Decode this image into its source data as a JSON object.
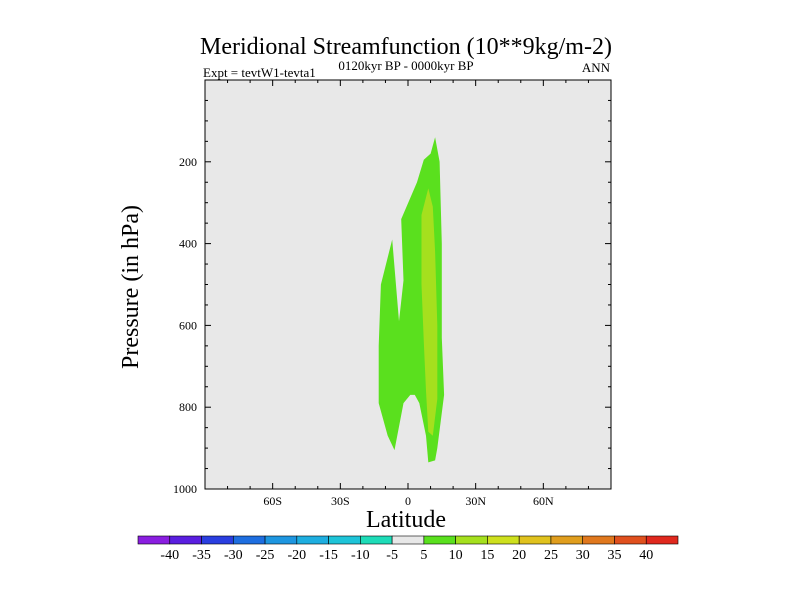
{
  "chart_data": {
    "type": "contour",
    "title": "Meridional Streamfunction (10**9kg/m-2)",
    "subtitle_left": "Expt = tevtW1-tevta1",
    "subtitle_center": "0120kyr BP - 0000kyr BP",
    "subtitle_right": "ANN",
    "xlabel": "Latitude",
    "ylabel": "Pressure (in hPa)",
    "xlim": [
      -90,
      90
    ],
    "ylim": [
      1000,
      0
    ],
    "x_ticks": [
      {
        "value": -60,
        "label": "60S"
      },
      {
        "value": -30,
        "label": "30S"
      },
      {
        "value": 0,
        "label": "0"
      },
      {
        "value": 30,
        "label": "30N"
      },
      {
        "value": 60,
        "label": "60N"
      }
    ],
    "y_ticks": [
      {
        "value": 200,
        "label": "200"
      },
      {
        "value": 400,
        "label": "400"
      },
      {
        "value": 600,
        "label": "600"
      },
      {
        "value": 800,
        "label": "800"
      },
      {
        "value": 1000,
        "label": "1000"
      }
    ],
    "background_color": "#e8e8e8",
    "regions": [
      {
        "name": "contour-5-to-10",
        "color": "#5ae01e",
        "points": [
          [
            -13,
            790
          ],
          [
            -13,
            650
          ],
          [
            -12,
            500
          ],
          [
            -7,
            390
          ],
          [
            -4,
            590
          ],
          [
            -2,
            490
          ],
          [
            -3,
            340
          ],
          [
            4,
            250
          ],
          [
            7,
            195
          ],
          [
            10,
            180
          ],
          [
            12,
            140
          ],
          [
            14,
            200
          ],
          [
            15,
            400
          ],
          [
            15,
            630
          ],
          [
            16,
            770
          ],
          [
            13,
            900
          ],
          [
            12,
            930
          ],
          [
            9,
            935
          ],
          [
            8,
            870
          ],
          [
            5,
            790
          ],
          [
            3,
            770
          ],
          [
            1,
            770
          ],
          [
            -2,
            790
          ],
          [
            -6,
            905
          ],
          [
            -9,
            870
          ],
          [
            -13,
            790
          ]
        ]
      },
      {
        "name": "contour-10-to-15",
        "color": "#a5e01e",
        "points": [
          [
            6,
            500
          ],
          [
            6,
            330
          ],
          [
            9,
            265
          ],
          [
            11,
            310
          ],
          [
            12,
            420
          ],
          [
            13,
            600
          ],
          [
            13,
            780
          ],
          [
            11,
            870
          ],
          [
            9,
            860
          ],
          [
            8,
            760
          ],
          [
            7,
            640
          ],
          [
            6,
            500
          ]
        ]
      }
    ],
    "colorbar": {
      "levels": [
        "-40",
        "-35",
        "-30",
        "-25",
        "-20",
        "-15",
        "-10",
        "-5",
        "5",
        "10",
        "15",
        "20",
        "25",
        "30",
        "35",
        "40"
      ],
      "colors": [
        "#8a1ee0",
        "#5a1ee0",
        "#2a3ee0",
        "#1e6ee0",
        "#1e96e0",
        "#1eaee0",
        "#1ec4d8",
        "#1edcb8",
        "#e8e8e8",
        "#5ae01e",
        "#a5e01e",
        "#cee01e",
        "#e0c21e",
        "#e09e1e",
        "#e0781e",
        "#e0501e",
        "#e0281e"
      ]
    }
  }
}
